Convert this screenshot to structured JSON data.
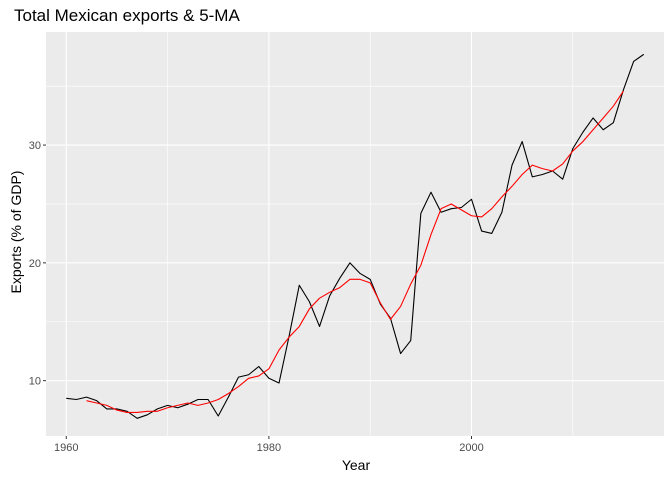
{
  "chart_data": {
    "type": "line",
    "title": "Total Mexican exports & 5-MA",
    "xlabel": "Year",
    "ylabel": "Exports (% of GDP)",
    "xlim": [
      1958,
      2019
    ],
    "ylim": [
      5.3,
      39.6
    ],
    "x_ticks": [
      1960,
      1980,
      2000
    ],
    "x_minor": [
      1970,
      1990,
      2010
    ],
    "y_ticks": [
      10,
      20,
      30
    ],
    "y_minor": [
      15,
      25,
      35
    ],
    "grid": true,
    "panel_background": "#ebebeb",
    "grid_color": "#ffffff",
    "series": [
      {
        "color": "#000000",
        "x": [
          1960,
          1961,
          1962,
          1963,
          1964,
          1965,
          1966,
          1967,
          1968,
          1969,
          1970,
          1971,
          1972,
          1973,
          1974,
          1975,
          1976,
          1977,
          1978,
          1979,
          1980,
          1981,
          1982,
          1983,
          1984,
          1985,
          1986,
          1987,
          1988,
          1989,
          1990,
          1991,
          1992,
          1993,
          1994,
          1995,
          1996,
          1997,
          1998,
          1999,
          2000,
          2001,
          2002,
          2003,
          2004,
          2005,
          2006,
          2007,
          2008,
          2009,
          2010,
          2011,
          2012,
          2013,
          2014,
          2015,
          2016,
          2017
        ],
        "values": [
          8.5,
          8.4,
          8.6,
          8.3,
          7.6,
          7.6,
          7.4,
          6.8,
          7.1,
          7.6,
          7.9,
          7.7,
          8.0,
          8.4,
          8.4,
          7.0,
          8.6,
          10.3,
          10.5,
          11.2,
          10.2,
          9.8,
          13.8,
          18.1,
          16.7,
          14.6,
          17.2,
          18.7,
          20.0,
          19.1,
          18.6,
          16.5,
          15.3,
          12.3,
          13.4,
          24.2,
          26.0,
          24.3,
          24.6,
          24.7,
          25.4,
          22.7,
          22.5,
          24.3,
          28.3,
          30.3,
          27.3,
          27.5,
          27.8,
          27.1,
          29.7,
          31.1,
          32.3,
          31.3,
          31.9,
          34.7,
          37.1,
          37.7
        ]
      },
      {
        "color": "#ff0000",
        "x": [
          1962,
          1963,
          1964,
          1965,
          1966,
          1967,
          1968,
          1969,
          1970,
          1971,
          1972,
          1973,
          1974,
          1975,
          1976,
          1977,
          1978,
          1979,
          1980,
          1981,
          1982,
          1983,
          1984,
          1985,
          1986,
          1987,
          1988,
          1989,
          1990,
          1991,
          1992,
          1993,
          1994,
          1995,
          1996,
          1997,
          1998,
          1999,
          2000,
          2001,
          2002,
          2003,
          2004,
          2005,
          2006,
          2007,
          2008,
          2009,
          2010,
          2011,
          2012,
          2013,
          2014,
          2015
        ],
        "values": [
          8.3,
          8.1,
          7.9,
          7.5,
          7.3,
          7.3,
          7.4,
          7.4,
          7.7,
          7.9,
          8.1,
          7.9,
          8.1,
          8.4,
          8.9,
          9.5,
          10.2,
          10.4,
          11.0,
          12.6,
          13.7,
          14.6,
          16.1,
          17.0,
          17.5,
          17.9,
          18.6,
          18.6,
          18.3,
          16.6,
          15.2,
          16.3,
          18.2,
          19.8,
          22.4,
          24.6,
          25.0,
          24.5,
          24.0,
          23.9,
          24.6,
          25.6,
          26.5,
          27.5,
          28.3,
          28.0,
          27.8,
          28.4,
          29.5,
          30.3,
          31.3,
          32.3,
          33.3,
          34.6
        ]
      }
    ]
  }
}
